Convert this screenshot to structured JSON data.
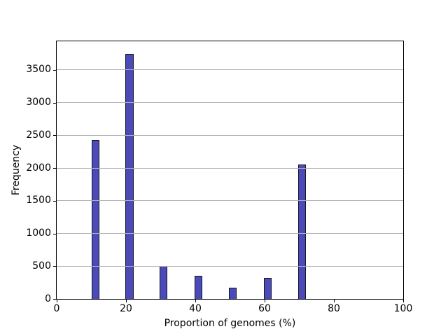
{
  "figure": {
    "background": "#ffffff"
  },
  "chart_data": {
    "type": "bar",
    "subtype": "histogram",
    "title": "",
    "xlabel": "Proportion of genomes (%)",
    "ylabel": "Frequency",
    "xlim": [
      0,
      100
    ],
    "ylim": [
      0,
      3937.5
    ],
    "xticks": [
      0,
      20,
      40,
      60,
      80,
      100
    ],
    "yticks": [
      0,
      500,
      1000,
      1500,
      2000,
      2500,
      3000,
      3500
    ],
    "grid": "horizontal",
    "grid_color": "#b2b2b2",
    "bar_color": "#4a4ab8",
    "bar_edge_color": "#15151e",
    "bars": [
      {
        "x0": 10.0,
        "x1": 12.3,
        "value": 2430
      },
      {
        "x0": 19.8,
        "x1": 22.2,
        "value": 3750
      },
      {
        "x0": 29.6,
        "x1": 31.9,
        "value": 500
      },
      {
        "x0": 39.8,
        "x1": 42.0,
        "value": 350
      },
      {
        "x0": 49.7,
        "x1": 51.9,
        "value": 175
      },
      {
        "x0": 59.8,
        "x1": 62.0,
        "value": 325
      },
      {
        "x0": 69.7,
        "x1": 71.9,
        "value": 2060
      }
    ]
  }
}
